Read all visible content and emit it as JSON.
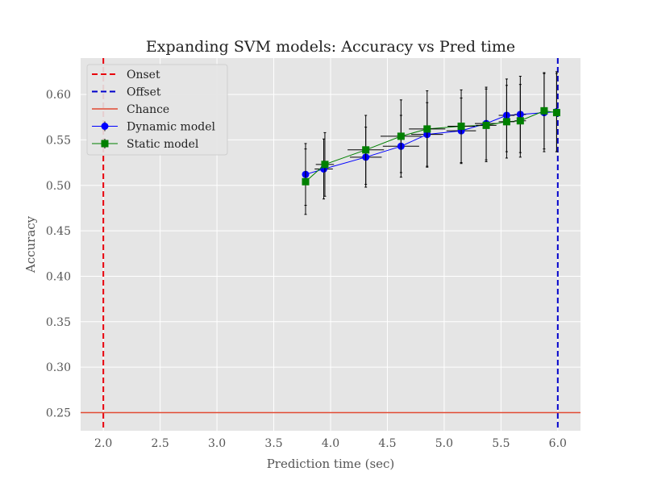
{
  "chart_data": {
    "type": "line",
    "title": "Expanding SVM models: Accuracy vs Pred time",
    "xlabel": "Prediction time (sec)",
    "ylabel": "Accuracy",
    "xlim": [
      1.8,
      6.2
    ],
    "ylim": [
      0.23,
      0.64
    ],
    "xticks": [
      "2.0",
      "2.5",
      "3.0",
      "3.5",
      "4.0",
      "4.5",
      "5.0",
      "5.5",
      "6.0"
    ],
    "yticks": [
      "0.25",
      "0.30",
      "0.35",
      "0.40",
      "0.45",
      "0.50",
      "0.55",
      "0.60"
    ],
    "grid": true,
    "legend_position": "top-left",
    "legend": [
      "Onset",
      "Offset",
      "Chance",
      "Dynamic model",
      "Static model"
    ],
    "reference_lines": {
      "onset": {
        "x": 2.0,
        "color": "#e8000b"
      },
      "offset": {
        "x": 6.0,
        "color": "#0000cc"
      },
      "chance": {
        "y": 0.25,
        "color": "#e24a33"
      }
    },
    "series": [
      {
        "name": "Dynamic model",
        "color": "#0000ff",
        "marker": "circle",
        "x": [
          3.78,
          3.94,
          4.31,
          4.62,
          4.85,
          5.15,
          5.37,
          5.55,
          5.67,
          5.88,
          5.99
        ],
        "y": [
          0.512,
          0.518,
          0.531,
          0.543,
          0.556,
          0.56,
          0.568,
          0.577,
          0.578,
          0.58,
          0.581
        ],
        "yerr": [
          0.034,
          0.033,
          0.033,
          0.034,
          0.035,
          0.036,
          0.04,
          0.04,
          0.042,
          0.043,
          0.044
        ],
        "xerr": [
          0.0,
          0.08,
          0.14,
          0.16,
          0.14,
          0.13,
          0.1,
          0.07,
          0.05,
          0.03,
          0.0
        ]
      },
      {
        "name": "Static model",
        "color": "#008000",
        "marker": "square",
        "x": [
          3.78,
          3.95,
          4.31,
          4.62,
          4.85,
          5.15,
          5.37,
          5.55,
          5.67,
          5.88,
          5.99
        ],
        "y": [
          0.504,
          0.523,
          0.539,
          0.554,
          0.562,
          0.565,
          0.566,
          0.57,
          0.571,
          0.582,
          0.58
        ],
        "yerr": [
          0.036,
          0.035,
          0.038,
          0.04,
          0.042,
          0.04,
          0.04,
          0.04,
          0.04,
          0.042,
          0.043
        ],
        "xerr": [
          0.0,
          0.08,
          0.16,
          0.18,
          0.16,
          0.12,
          0.09,
          0.07,
          0.05,
          0.03,
          0.0
        ]
      }
    ]
  }
}
